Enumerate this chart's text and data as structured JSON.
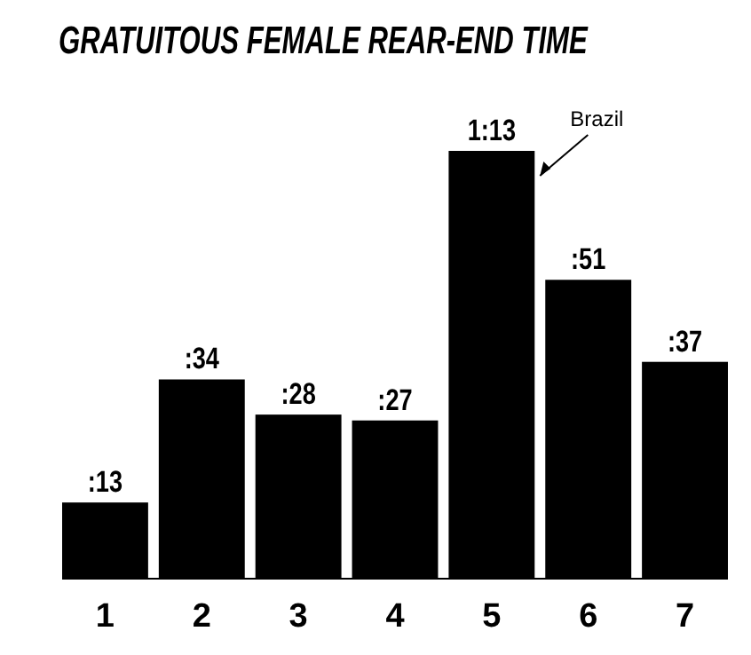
{
  "chart_data": {
    "type": "bar",
    "title": "GRATUITOUS FEMALE REAR-END TIME",
    "categories": [
      "1",
      "2",
      "3",
      "4",
      "5",
      "6",
      "7"
    ],
    "values": [
      13,
      34,
      28,
      27,
      73,
      51,
      37
    ],
    "value_labels": [
      ":13",
      ":34",
      ":28",
      ":27",
      "1:13",
      ":51",
      ":37"
    ],
    "color": "#000000",
    "annotations": [
      "Brazil"
    ]
  }
}
